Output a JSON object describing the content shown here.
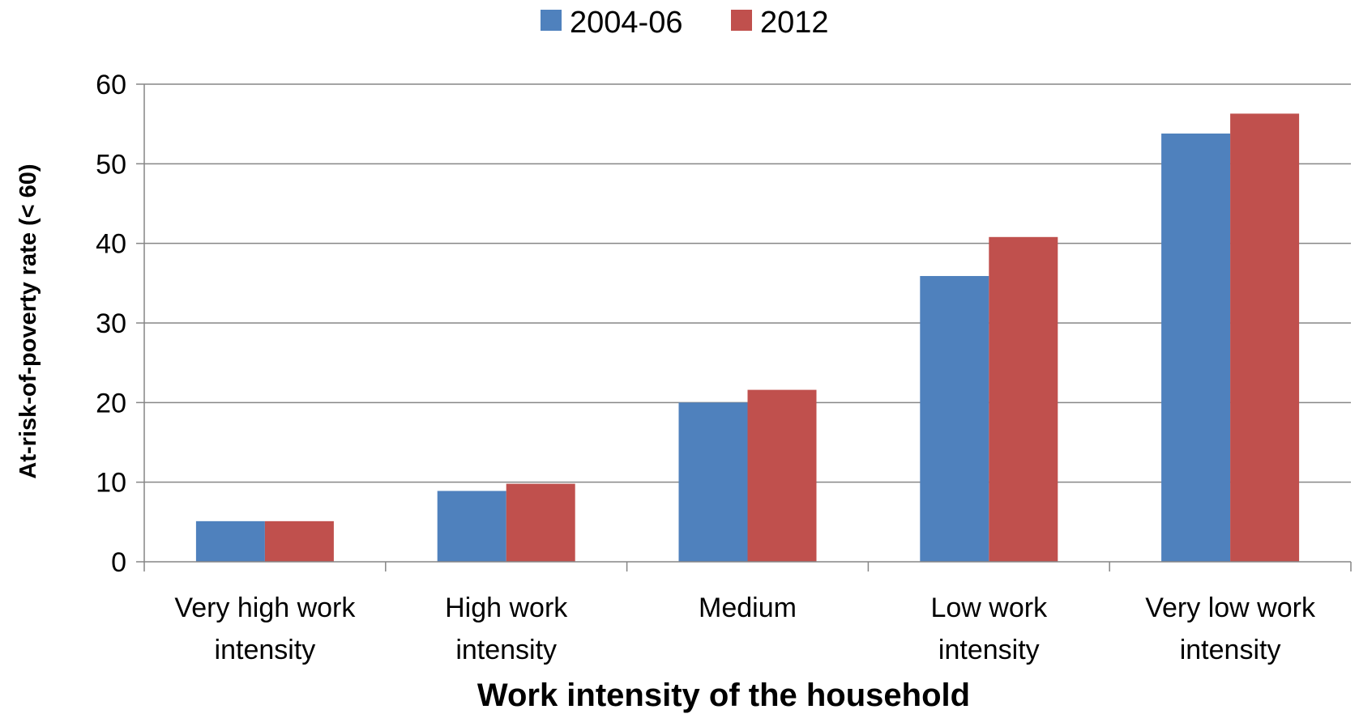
{
  "chart_data": {
    "type": "bar",
    "title": "",
    "xlabel": "Work intensity of the household",
    "ylabel": "At-risk-of-poverty rate (< 60)",
    "categories": [
      [
        "Very high work",
        "intensity"
      ],
      [
        "High work",
        "intensity"
      ],
      [
        "Medium"
      ],
      [
        "Low work",
        "intensity"
      ],
      [
        "Very low work",
        "intensity"
      ]
    ],
    "series": [
      {
        "name": "2004-06",
        "color": "#4F81BD",
        "values": [
          5.1,
          8.9,
          20.0,
          35.9,
          53.8
        ]
      },
      {
        "name": "2012",
        "color": "#C0504D",
        "values": [
          5.1,
          9.8,
          21.6,
          40.8,
          56.3
        ]
      }
    ],
    "ylim": [
      0,
      60
    ],
    "yticks": [
      0,
      10,
      20,
      30,
      40,
      50,
      60
    ],
    "grid": true,
    "legend_position": "top"
  }
}
